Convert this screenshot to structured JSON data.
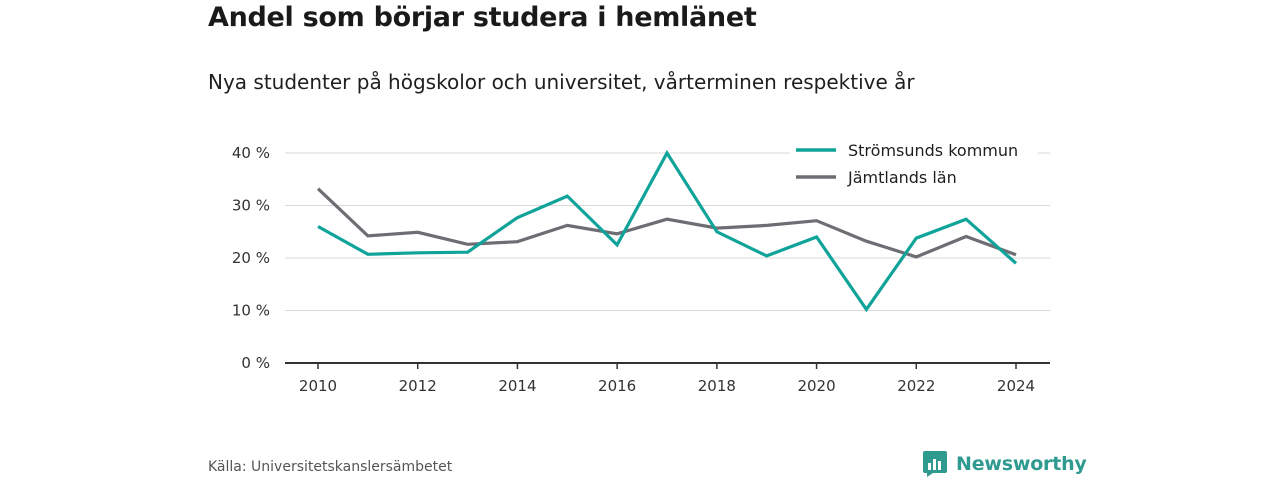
{
  "header": {
    "title": "Andel som börjar studera i hemlänet",
    "subtitle": "Nya studenter på högskolor och universitet, vårterminen respektive år"
  },
  "footer": {
    "source": "Källa: Universitetskanslersämbetet",
    "brand": "Newsworthy"
  },
  "colors": {
    "series_1": "#0fa39a",
    "series_2": "#6e6d74",
    "grid": "#d9d9d9",
    "axis": "#333333",
    "brand": "#2f9a8f"
  },
  "chart_data": {
    "type": "line",
    "title": "Andel som börjar studera i hemlänet",
    "subtitle": "Nya studenter på högskolor och universitet, vårterminen respektive år",
    "xlabel": "",
    "ylabel": "",
    "x": [
      2010,
      2011,
      2012,
      2013,
      2014,
      2015,
      2016,
      2017,
      2018,
      2019,
      2020,
      2021,
      2022,
      2023,
      2024
    ],
    "xticks": [
      "2010",
      "2012",
      "2014",
      "2016",
      "2018",
      "2020",
      "2022",
      "2024"
    ],
    "yticks": [
      "0 %",
      "10 %",
      "20 %",
      "30 %",
      "40 %"
    ],
    "ylim": [
      0,
      40
    ],
    "grid": true,
    "legend_position": "top-right",
    "series": [
      {
        "name": "Strömsunds kommun",
        "values": [
          26,
          20.7,
          21,
          21.1,
          27.7,
          31.8,
          22.5,
          40,
          25,
          20.4,
          24,
          10.2,
          23.8,
          27.4,
          19
        ]
      },
      {
        "name": "Jämtlands län",
        "values": [
          33.2,
          24.2,
          24.9,
          22.6,
          23.1,
          26.2,
          24.6,
          27.4,
          25.7,
          26.2,
          27.1,
          23.2,
          20.2,
          24.1,
          20.6
        ]
      }
    ]
  }
}
